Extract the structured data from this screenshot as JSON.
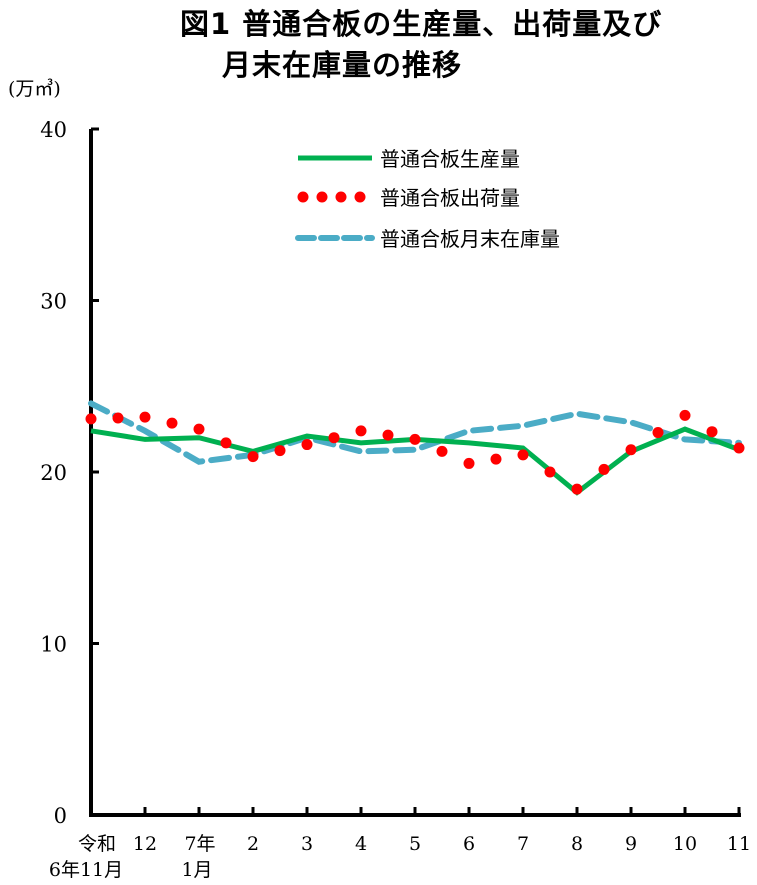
{
  "title": {
    "line1": "図1 普通合板の生産量、出荷量及び",
    "line2": "月末在庫量の推移"
  },
  "unit_label": "(万㎥)",
  "legend": {
    "production": "普通合板生産量",
    "shipments": "普通合板出荷量",
    "inventory": "普通合板月末在庫量"
  },
  "colors": {
    "production": "#00B050",
    "shipments": "#FF0000",
    "inventory": "#4BACC6",
    "axis": "#000000"
  },
  "y_ticks": [
    "0",
    "10",
    "20",
    "30",
    "40"
  ],
  "x_ticks": [
    [
      "令和",
      "6年11月"
    ],
    [
      "12"
    ],
    [
      "7年",
      "1月"
    ],
    [
      "2"
    ],
    [
      "3"
    ],
    [
      "4"
    ],
    [
      "5"
    ],
    [
      "6"
    ],
    [
      "7"
    ],
    [
      "8"
    ],
    [
      "9"
    ],
    [
      "10"
    ],
    [
      "11"
    ]
  ],
  "chart_data": {
    "type": "line",
    "title": "図1 普通合板の生産量、出荷量及び月末在庫量の推移",
    "xlabel": "",
    "ylabel": "(万㎥)",
    "ylim": [
      0,
      40
    ],
    "yticks": [
      0,
      10,
      20,
      30,
      40
    ],
    "grid": false,
    "legend_position": "upper center",
    "categories": [
      "令和6年11月",
      "12",
      "7年1月",
      "2",
      "3",
      "4",
      "5",
      "6",
      "7",
      "8",
      "9",
      "10",
      "11"
    ],
    "series": [
      {
        "name": "普通合板生産量",
        "style": "solid",
        "color": "#00B050",
        "values": [
          22.4,
          21.9,
          22.0,
          21.2,
          22.1,
          21.7,
          21.9,
          21.7,
          21.4,
          18.8,
          21.2,
          22.5,
          21.3
        ]
      },
      {
        "name": "普通合板出荷量",
        "style": "dotted",
        "color": "#FF0000",
        "values": [
          23.1,
          23.2,
          22.5,
          20.9,
          21.6,
          22.4,
          21.9,
          20.5,
          21.0,
          19.0,
          21.3,
          23.3,
          21.4
        ]
      },
      {
        "name": "普通合板月末在庫量",
        "style": "dashed",
        "color": "#4BACC6",
        "values": [
          24.0,
          22.4,
          20.6,
          21.0,
          22.0,
          21.2,
          21.3,
          22.4,
          22.7,
          23.4,
          22.9,
          21.9,
          21.7
        ]
      }
    ]
  }
}
